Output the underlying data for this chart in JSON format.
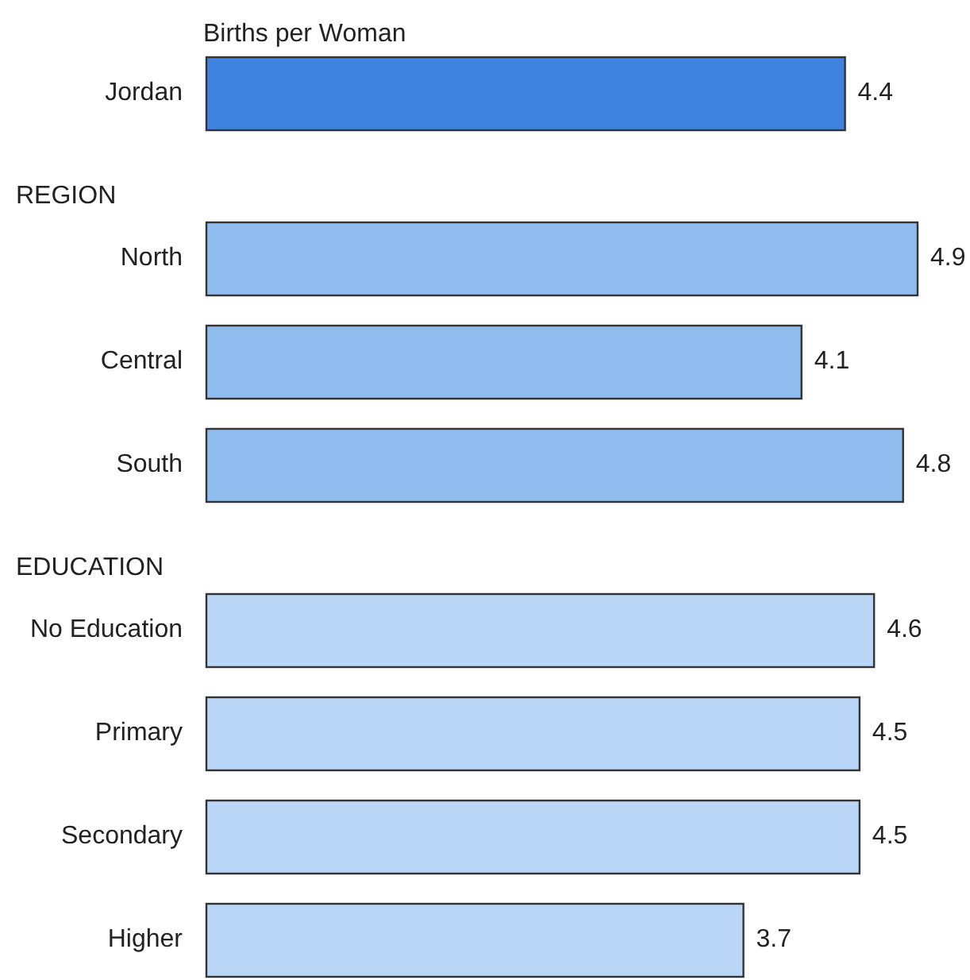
{
  "chart_data": {
    "type": "bar",
    "orientation": "horizontal",
    "title": "Births per Woman",
    "categories": [
      "Jordan",
      "North",
      "Central",
      "South",
      "No Education",
      "Primary",
      "Secondary",
      "Higher"
    ],
    "values": [
      4.4,
      4.9,
      4.1,
      4.8,
      4.6,
      4.5,
      4.5,
      3.7
    ],
    "colors": [
      "#3f82e0",
      "#8fbbee",
      "#8fbbee",
      "#8fbbee",
      "#b9d6f6",
      "#b9d6f6",
      "#b9d6f6",
      "#b9d6f6"
    ],
    "annotations": [
      "REGION",
      "EDUCATION"
    ],
    "data_labels": true
  }
}
